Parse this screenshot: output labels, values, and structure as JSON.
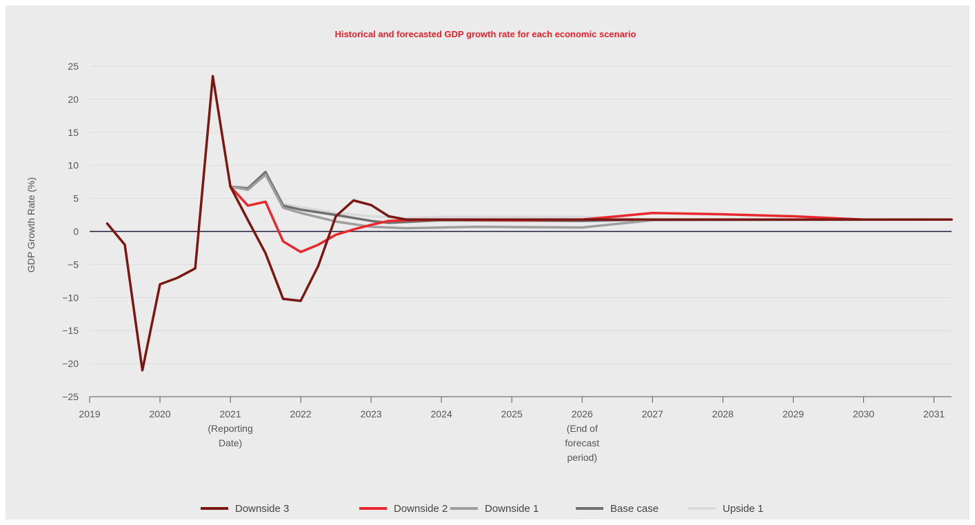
{
  "chart_data": {
    "type": "line",
    "title": "Historical and forecasted GDP growth rate for each economic scenario",
    "title_color": "#e8202a",
    "ylabel": "GDP Growth Rate (%)",
    "xlabel": "",
    "ylim": [
      -25,
      25
    ],
    "yticks": [
      25,
      20,
      15,
      10,
      5,
      0,
      -5,
      -10,
      -15,
      -20,
      -25
    ],
    "xlim": [
      2019,
      2031.25
    ],
    "xticks": [
      {
        "value": 2019,
        "label": "2019"
      },
      {
        "value": 2020,
        "label": "2020"
      },
      {
        "value": 2021,
        "label": "2021",
        "note": [
          "(Reporting",
          "Date)"
        ]
      },
      {
        "value": 2022,
        "label": "2022"
      },
      {
        "value": 2023,
        "label": "2023"
      },
      {
        "value": 2024,
        "label": "2024"
      },
      {
        "value": 2025,
        "label": "2025"
      },
      {
        "value": 2026,
        "label": "2026",
        "note": [
          "(End of",
          "forecast",
          "period)"
        ]
      },
      {
        "value": 2027,
        "label": "2027"
      },
      {
        "value": 2028,
        "label": "2028"
      },
      {
        "value": 2029,
        "label": "2029"
      },
      {
        "value": 2030,
        "label": "2030"
      },
      {
        "value": 2031,
        "label": "2031"
      }
    ],
    "grid": true,
    "legend_position": "bottom",
    "series": [
      {
        "name": "Upside 1",
        "color": "#d9d9d9",
        "x": [
          2021,
          2021.25,
          2021.5,
          2021.75,
          2022,
          2022.5,
          2023,
          2023.5,
          2024,
          2026,
          2027,
          2031.25
        ],
        "y": [
          6.8,
          6.7,
          9.0,
          4.2,
          3.7,
          2.8,
          2.3,
          2.0,
          2.2,
          2.2,
          1.8,
          1.8
        ]
      },
      {
        "name": "Base case",
        "color": "#707070",
        "x": [
          2021,
          2021.25,
          2021.5,
          2021.75,
          2022,
          2022.5,
          2023,
          2023.25,
          2024,
          2026,
          2027,
          2031.25
        ],
        "y": [
          6.8,
          6.5,
          9.0,
          3.9,
          3.3,
          2.5,
          1.6,
          1.3,
          1.7,
          1.6,
          1.8,
          1.8
        ]
      },
      {
        "name": "Downside 1",
        "color": "#9e9e9e",
        "x": [
          2021,
          2021.25,
          2021.5,
          2021.75,
          2022,
          2022.5,
          2023,
          2023.5,
          2024,
          2024.5,
          2026,
          2027,
          2031.25
        ],
        "y": [
          6.8,
          6.3,
          8.6,
          3.6,
          2.8,
          1.5,
          0.7,
          0.5,
          0.6,
          0.7,
          0.6,
          1.7,
          1.8
        ]
      },
      {
        "name": "Downside 2",
        "color": "#e8282c",
        "x": [
          2021,
          2021.25,
          2021.5,
          2021.75,
          2022,
          2022.25,
          2022.5,
          2022.75,
          2023,
          2023.25,
          2023.5,
          2024,
          2025,
          2026,
          2027,
          2028,
          2029,
          2030,
          2031.25
        ],
        "y": [
          6.8,
          3.9,
          4.5,
          -1.5,
          -3.1,
          -2.0,
          -0.5,
          0.3,
          1.0,
          1.6,
          1.7,
          1.8,
          1.7,
          1.8,
          2.8,
          2.6,
          2.3,
          1.8,
          1.8
        ]
      },
      {
        "name": "Downside 3",
        "color": "#7b1713",
        "x": [
          2019.25,
          2019.5,
          2019.75,
          2020,
          2020.25,
          2020.5,
          2020.75,
          2021,
          2021.25,
          2021.5,
          2021.75,
          2022,
          2022.25,
          2022.5,
          2022.75,
          2023,
          2023.25,
          2023.5,
          2024,
          2025,
          2026,
          2027,
          2031.25
        ],
        "y": [
          1.2,
          -2.0,
          -21.0,
          -8.0,
          -7.0,
          -5.6,
          23.5,
          6.8,
          1.7,
          -3.3,
          -10.2,
          -10.5,
          -5.2,
          2.3,
          4.7,
          4.0,
          2.3,
          1.8,
          1.8,
          1.8,
          1.8,
          1.8,
          1.8
        ]
      }
    ],
    "legend": [
      {
        "label": "Downside 3",
        "color": "#7b1713"
      },
      {
        "label": "Downside 2",
        "color": "#e8282c"
      },
      {
        "label": "Downside 1",
        "color": "#9e9e9e"
      },
      {
        "label": "Base case",
        "color": "#707070"
      },
      {
        "label": "Upside 1",
        "color": "#d9d9d9"
      }
    ]
  }
}
